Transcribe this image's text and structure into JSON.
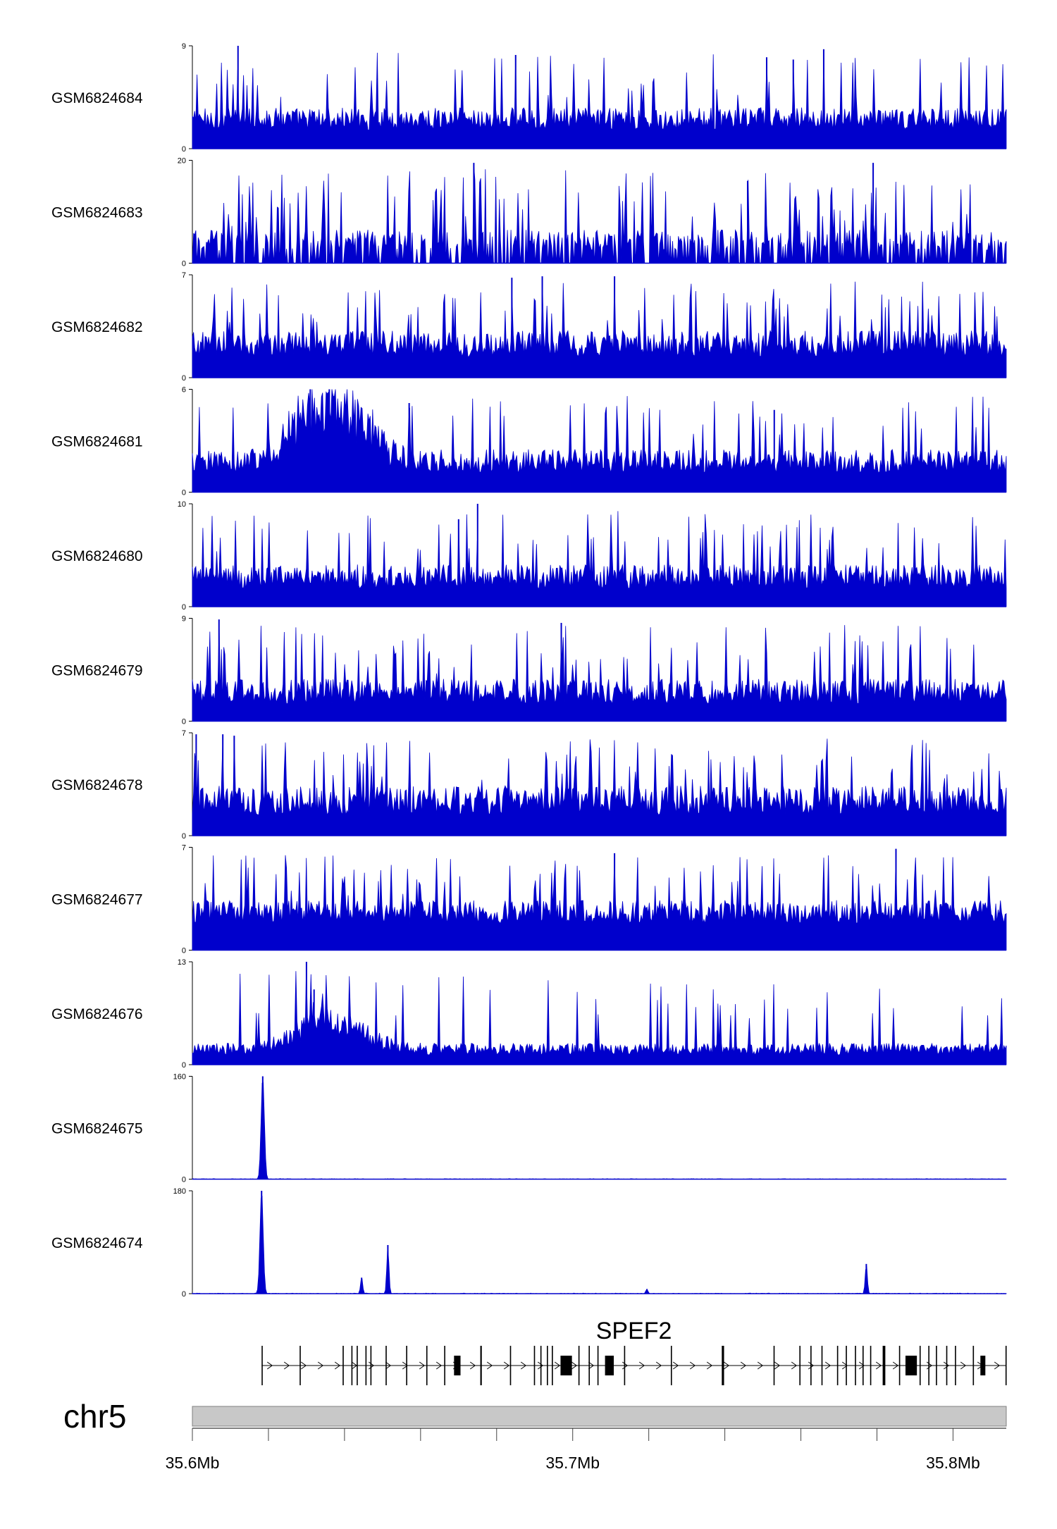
{
  "chart_data": {
    "type": "area",
    "chromosome": "chr5",
    "xlim": [
      35.6,
      35.814
    ],
    "x_unit": "Mb",
    "x_ticks": [
      {
        "value": 35.6,
        "label": "35.6Mb"
      },
      {
        "value": 35.62,
        "label": ""
      },
      {
        "value": 35.64,
        "label": ""
      },
      {
        "value": 35.66,
        "label": ""
      },
      {
        "value": 35.68,
        "label": ""
      },
      {
        "value": 35.7,
        "label": "35.7Mb"
      },
      {
        "value": 35.72,
        "label": ""
      },
      {
        "value": 35.74,
        "label": ""
      },
      {
        "value": 35.76,
        "label": ""
      },
      {
        "value": 35.78,
        "label": ""
      },
      {
        "value": 35.8,
        "label": "35.8Mb"
      }
    ],
    "colors": {
      "signal": "#0000cc",
      "gene": "#000000",
      "ideogram": "#c8c8c8"
    },
    "series": [
      {
        "name": "GSM6824684",
        "ylim": [
          0,
          9
        ],
        "profile": "uniform",
        "baseline": 1.6,
        "variance": 2.0,
        "spike_prob": 0.09,
        "peaks": [
          {
            "x": 35.612,
            "y": 9
          },
          {
            "x": 35.685,
            "y": 8.2
          },
          {
            "x": 35.751,
            "y": 8.0
          },
          {
            "x": 35.758,
            "y": 7.8
          },
          {
            "x": 35.766,
            "y": 8.7
          }
        ]
      },
      {
        "name": "GSM6824683",
        "ylim": [
          0,
          20
        ],
        "profile": "uniform-sparse",
        "baseline": 2.5,
        "variance": 4.0,
        "spike_prob": 0.14,
        "peaks": [
          {
            "x": 35.674,
            "y": 19.5
          },
          {
            "x": 35.779,
            "y": 19.5
          },
          {
            "x": 35.746,
            "y": 16.0
          }
        ]
      },
      {
        "name": "GSM6824682",
        "ylim": [
          0,
          7
        ],
        "profile": "uniform",
        "baseline": 1.4,
        "variance": 1.8,
        "spike_prob": 0.1,
        "peaks": [
          {
            "x": 35.684,
            "y": 6.8
          },
          {
            "x": 35.692,
            "y": 6.9
          },
          {
            "x": 35.711,
            "y": 6.9
          }
        ]
      },
      {
        "name": "GSM6824681",
        "ylim": [
          0,
          6
        ],
        "profile": "early-enriched",
        "baseline": 1.1,
        "variance": 1.4,
        "spike_prob": 0.08,
        "peaks": [
          {
            "x": 35.631,
            "y": 6.0
          },
          {
            "x": 35.636,
            "y": 6.0
          },
          {
            "x": 35.657,
            "y": 5.2
          },
          {
            "x": 35.753,
            "y": 4.8
          }
        ]
      },
      {
        "name": "GSM6824680",
        "ylim": [
          0,
          10
        ],
        "profile": "uniform",
        "baseline": 1.7,
        "variance": 2.4,
        "spike_prob": 0.1,
        "peaks": [
          {
            "x": 35.675,
            "y": 10
          },
          {
            "x": 35.67,
            "y": 8.5
          }
        ]
      },
      {
        "name": "GSM6824679",
        "ylim": [
          0,
          9
        ],
        "profile": "uniform",
        "baseline": 1.5,
        "variance": 2.2,
        "spike_prob": 0.11,
        "peaks": [
          {
            "x": 35.607,
            "y": 8.9
          },
          {
            "x": 35.697,
            "y": 8.6
          }
        ]
      },
      {
        "name": "GSM6824678",
        "ylim": [
          0,
          7
        ],
        "profile": "uniform",
        "baseline": 1.4,
        "variance": 2.0,
        "spike_prob": 0.11,
        "peaks": [
          {
            "x": 35.601,
            "y": 6.9
          },
          {
            "x": 35.608,
            "y": 6.9
          },
          {
            "x": 35.611,
            "y": 6.8
          }
        ]
      },
      {
        "name": "GSM6824677",
        "ylim": [
          0,
          7
        ],
        "profile": "uniform-dense",
        "baseline": 1.8,
        "variance": 1.6,
        "spike_prob": 0.08,
        "peaks": [
          {
            "x": 35.711,
            "y": 6.6
          },
          {
            "x": 35.785,
            "y": 6.9
          }
        ]
      },
      {
        "name": "GSM6824676",
        "ylim": [
          0,
          13
        ],
        "profile": "early-enriched",
        "baseline": 1.2,
        "variance": 1.5,
        "spike_prob": 0.06,
        "peaks": [
          {
            "x": 35.63,
            "y": 13
          },
          {
            "x": 35.632,
            "y": 9.5
          }
        ]
      },
      {
        "name": "GSM6824675",
        "ylim": [
          0,
          160
        ],
        "profile": "low",
        "baseline": 0.8,
        "variance": 0.8,
        "spike_prob": 0.0,
        "peaks": [
          {
            "x": 35.6185,
            "y": 160
          }
        ]
      },
      {
        "name": "GSM6824674",
        "ylim": [
          0,
          180
        ],
        "profile": "low",
        "baseline": 1.0,
        "variance": 0.8,
        "spike_prob": 0.0,
        "peaks": [
          {
            "x": 35.6182,
            "y": 180
          },
          {
            "x": 35.6445,
            "y": 28
          },
          {
            "x": 35.6514,
            "y": 85
          },
          {
            "x": 35.7772,
            "y": 52
          },
          {
            "x": 35.7195,
            "y": 8
          }
        ]
      }
    ],
    "gene": {
      "name": "SPEF2",
      "start": 35.6182,
      "end": 35.814,
      "strand": "+",
      "exons": [
        {
          "start": 35.6182,
          "end": 35.6184
        },
        {
          "start": 35.6282,
          "end": 35.6284
        },
        {
          "start": 35.6395,
          "end": 35.6398
        },
        {
          "start": 35.6418,
          "end": 35.6421
        },
        {
          "start": 35.6432,
          "end": 35.6434
        },
        {
          "start": 35.6455,
          "end": 35.6458
        },
        {
          "start": 35.6468,
          "end": 35.6471
        },
        {
          "start": 35.6508,
          "end": 35.6511
        },
        {
          "start": 35.6562,
          "end": 35.6565
        },
        {
          "start": 35.6615,
          "end": 35.6618
        },
        {
          "start": 35.6662,
          "end": 35.6665
        },
        {
          "start": 35.6688,
          "end": 35.6705
        },
        {
          "start": 35.6757,
          "end": 35.6761
        },
        {
          "start": 35.6835,
          "end": 35.6838
        },
        {
          "start": 35.6898,
          "end": 35.6901
        },
        {
          "start": 35.6915,
          "end": 35.6918
        },
        {
          "start": 35.6932,
          "end": 35.6935
        },
        {
          "start": 35.6945,
          "end": 35.6948
        },
        {
          "start": 35.6968,
          "end": 35.6998
        },
        {
          "start": 35.7015,
          "end": 35.7018
        },
        {
          "start": 35.7042,
          "end": 35.7045
        },
        {
          "start": 35.7065,
          "end": 35.7068
        },
        {
          "start": 35.7085,
          "end": 35.7108
        },
        {
          "start": 35.7135,
          "end": 35.7138
        },
        {
          "start": 35.7258,
          "end": 35.7261
        },
        {
          "start": 35.7392,
          "end": 35.7398
        },
        {
          "start": 35.7528,
          "end": 35.7531
        },
        {
          "start": 35.7596,
          "end": 35.7599
        },
        {
          "start": 35.7625,
          "end": 35.7628
        },
        {
          "start": 35.7654,
          "end": 35.7657
        },
        {
          "start": 35.7695,
          "end": 35.7698
        },
        {
          "start": 35.7718,
          "end": 35.7721
        },
        {
          "start": 35.7742,
          "end": 35.7745
        },
        {
          "start": 35.7762,
          "end": 35.7765
        },
        {
          "start": 35.7782,
          "end": 35.7785
        },
        {
          "start": 35.7815,
          "end": 35.7822
        },
        {
          "start": 35.7858,
          "end": 35.7861
        },
        {
          "start": 35.7875,
          "end": 35.7905
        },
        {
          "start": 35.7912,
          "end": 35.7915
        },
        {
          "start": 35.7935,
          "end": 35.7938
        },
        {
          "start": 35.7955,
          "end": 35.7958
        },
        {
          "start": 35.7982,
          "end": 35.7985
        },
        {
          "start": 35.8005,
          "end": 35.8008
        },
        {
          "start": 35.8052,
          "end": 35.8055
        },
        {
          "start": 35.8072,
          "end": 35.8085
        },
        {
          "start": 35.8138,
          "end": 35.814
        }
      ]
    }
  }
}
